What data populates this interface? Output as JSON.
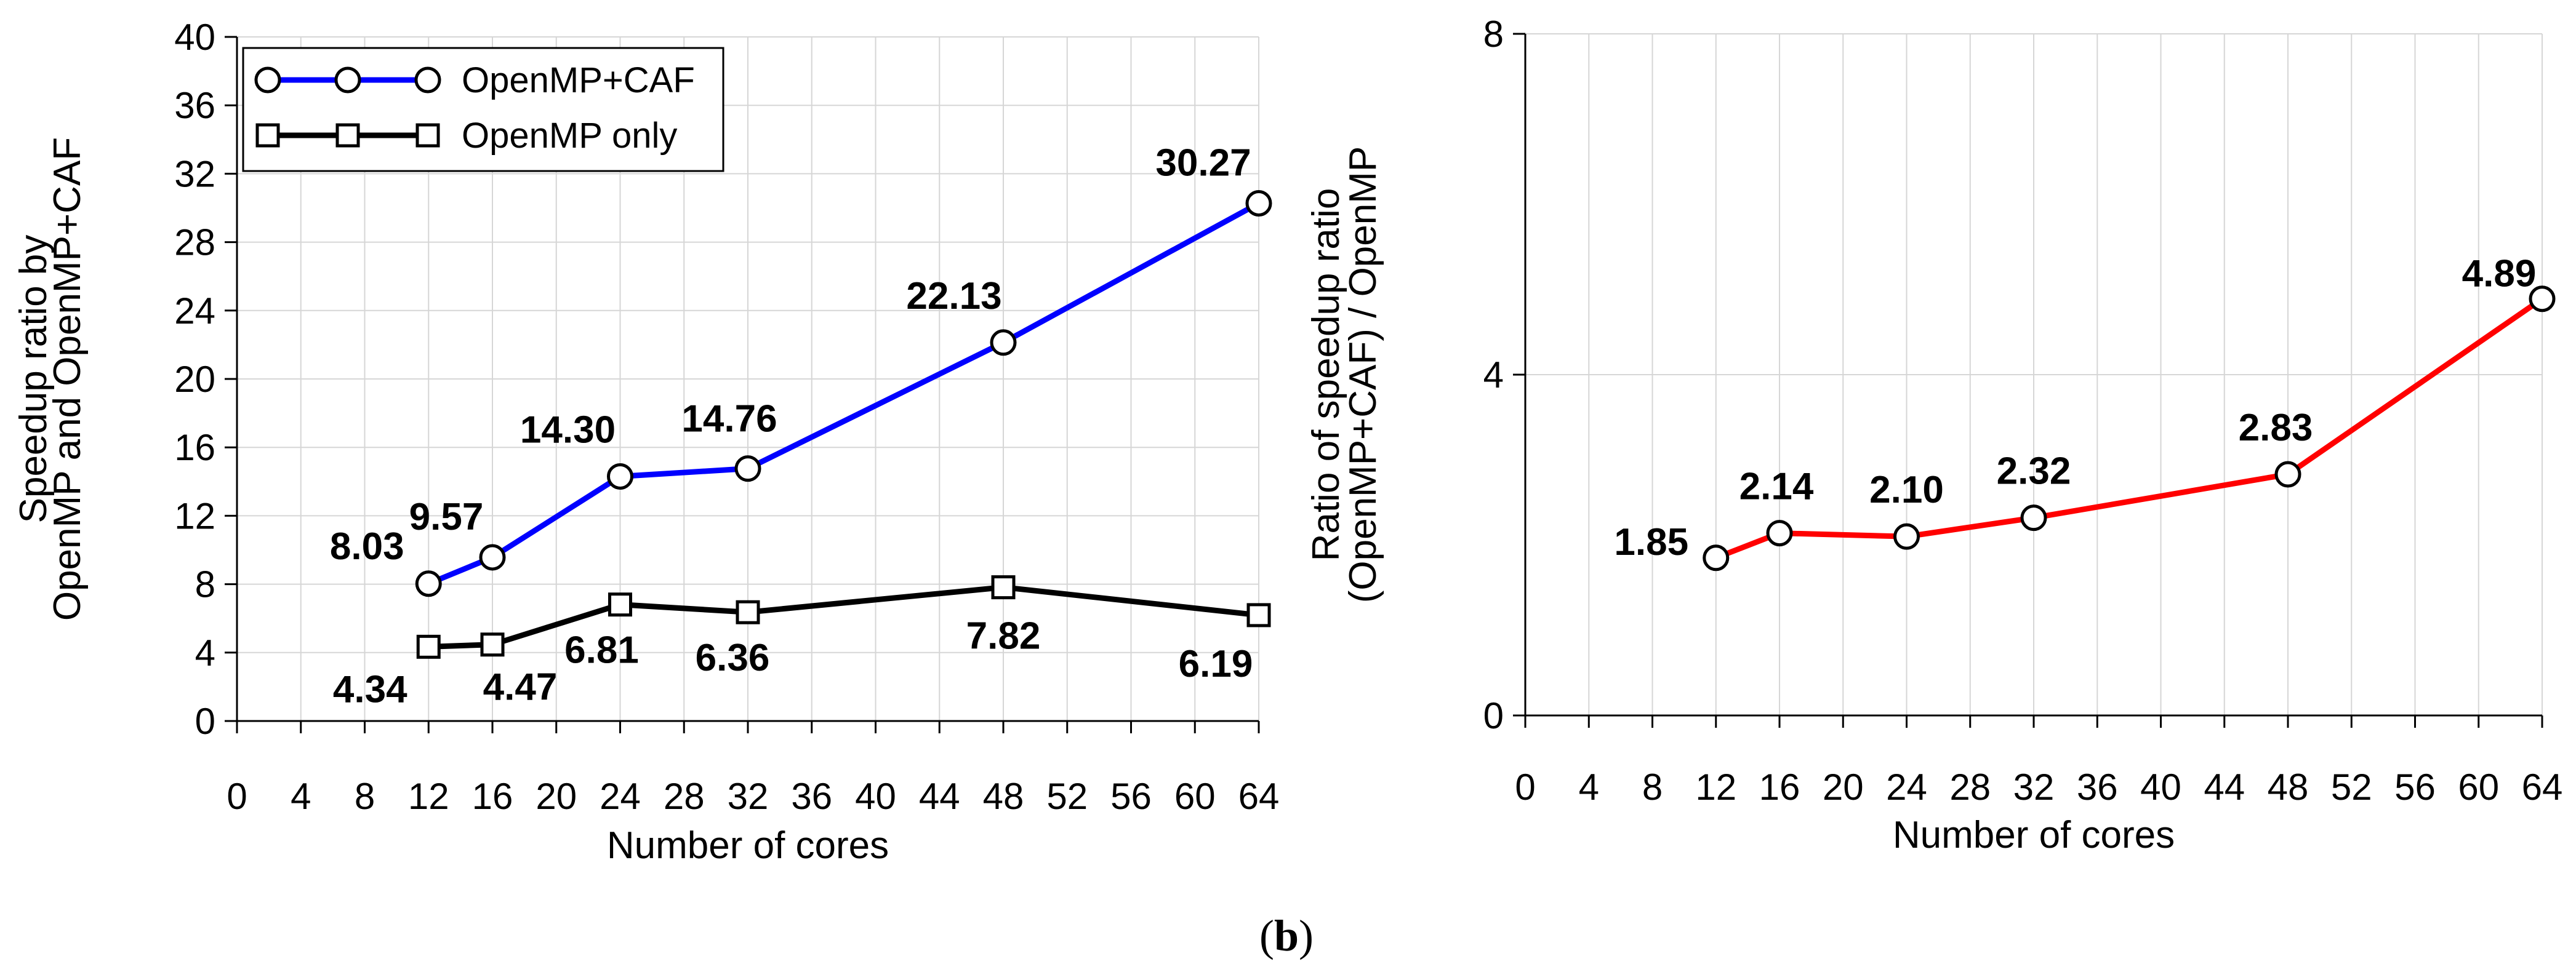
{
  "caption": {
    "open": "(",
    "letter": "b",
    "close": ")"
  },
  "chart_data": [
    {
      "type": "line",
      "title": "",
      "xlabel": "Number of cores",
      "ylabel_lines": [
        "Speedup ratio by",
        "OpenMP and OpenMP+CAF"
      ],
      "xlim": [
        0,
        64
      ],
      "ylim": [
        0,
        40
      ],
      "xticks": [
        0,
        4,
        8,
        12,
        16,
        20,
        24,
        28,
        32,
        36,
        40,
        44,
        48,
        52,
        56,
        60,
        64
      ],
      "yticks": [
        0,
        4,
        8,
        12,
        16,
        20,
        24,
        28,
        32,
        36,
        40
      ],
      "grid": true,
      "legend_position": "top-left",
      "series": [
        {
          "name": "OpenMP+CAF",
          "marker": "circle",
          "color": "#0000ff",
          "x": [
            12,
            16,
            24,
            32,
            48,
            64
          ],
          "values": [
            8.03,
            9.57,
            14.3,
            14.76,
            22.13,
            30.27
          ],
          "labels": [
            "8.03",
            "9.57",
            "14.30",
            "14.76",
            "22.13",
            "30.27"
          ]
        },
        {
          "name": "OpenMP only",
          "marker": "square",
          "color": "#000000",
          "x": [
            12,
            16,
            24,
            32,
            48,
            64
          ],
          "values": [
            4.34,
            4.47,
            6.81,
            6.36,
            7.82,
            6.19
          ],
          "labels": [
            "4.34",
            "4.47",
            "6.81",
            "6.36",
            "7.82",
            "6.19"
          ]
        }
      ]
    },
    {
      "type": "line",
      "title": "",
      "xlabel": "Number of cores",
      "ylabel_lines": [
        "Ratio of speedup ratio",
        "(OpenMP+CAF) / OpenMP"
      ],
      "xlim": [
        0,
        64
      ],
      "ylim": [
        0,
        8
      ],
      "xticks": [
        0,
        4,
        8,
        12,
        16,
        20,
        24,
        28,
        32,
        36,
        40,
        44,
        48,
        52,
        56,
        60,
        64
      ],
      "yticks": [
        0,
        4,
        8
      ],
      "grid": true,
      "series": [
        {
          "name": "Ratio",
          "marker": "circle",
          "color": "#ff0000",
          "x": [
            12,
            16,
            24,
            32,
            48,
            64
          ],
          "values": [
            1.85,
            2.14,
            2.1,
            2.32,
            2.83,
            4.89
          ],
          "labels": [
            "1.85",
            "2.14",
            "2.10",
            "2.32",
            "2.83",
            "4.89"
          ]
        }
      ]
    }
  ]
}
